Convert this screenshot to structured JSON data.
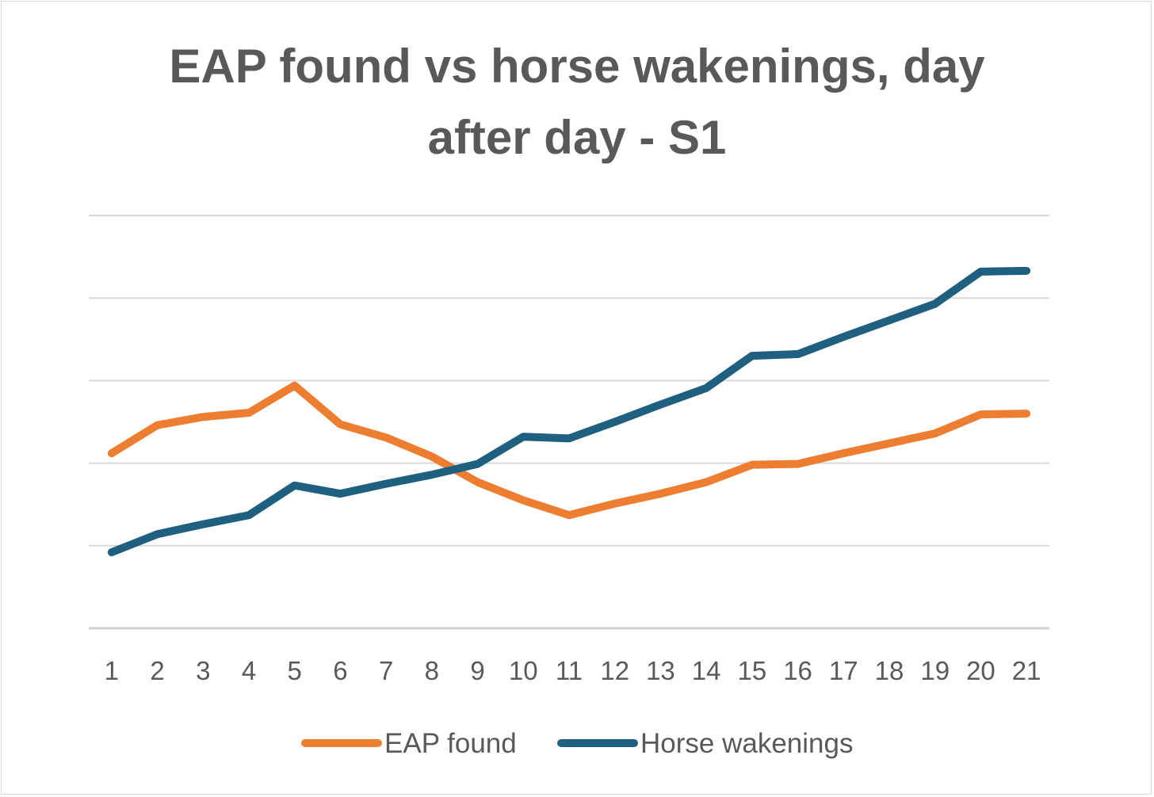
{
  "chart_data": {
    "type": "line",
    "title": "EAP found vs horse wakenings, day after day - S1",
    "title_lines": [
      "EAP found vs horse wakenings, day",
      "after day - S1"
    ],
    "xlabel": "",
    "ylabel": "",
    "x": [
      "1",
      "2",
      "3",
      "4",
      "5",
      "6",
      "7",
      "8",
      "9",
      "10",
      "11",
      "12",
      "13",
      "14",
      "15",
      "16",
      "17",
      "18",
      "19",
      "20",
      "21"
    ],
    "ylim": [
      0,
      5
    ],
    "y_ticks_shown": false,
    "grid": true,
    "legend_position": "bottom",
    "series": [
      {
        "name": "EAP found",
        "color": "#ED7D31",
        "values": [
          2.12,
          2.46,
          2.56,
          2.61,
          2.94,
          2.47,
          2.31,
          2.08,
          1.77,
          1.55,
          1.37,
          1.51,
          1.63,
          1.77,
          1.98,
          1.99,
          2.12,
          2.24,
          2.36,
          2.59,
          2.6
        ]
      },
      {
        "name": "Horse wakenings",
        "color": "#1F5F7F",
        "values": [
          0.92,
          1.14,
          1.26,
          1.37,
          1.73,
          1.63,
          1.75,
          1.86,
          1.99,
          2.32,
          2.3,
          2.5,
          2.71,
          2.91,
          3.3,
          3.32,
          3.53,
          3.73,
          3.93,
          4.32,
          4.33
        ]
      }
    ]
  }
}
